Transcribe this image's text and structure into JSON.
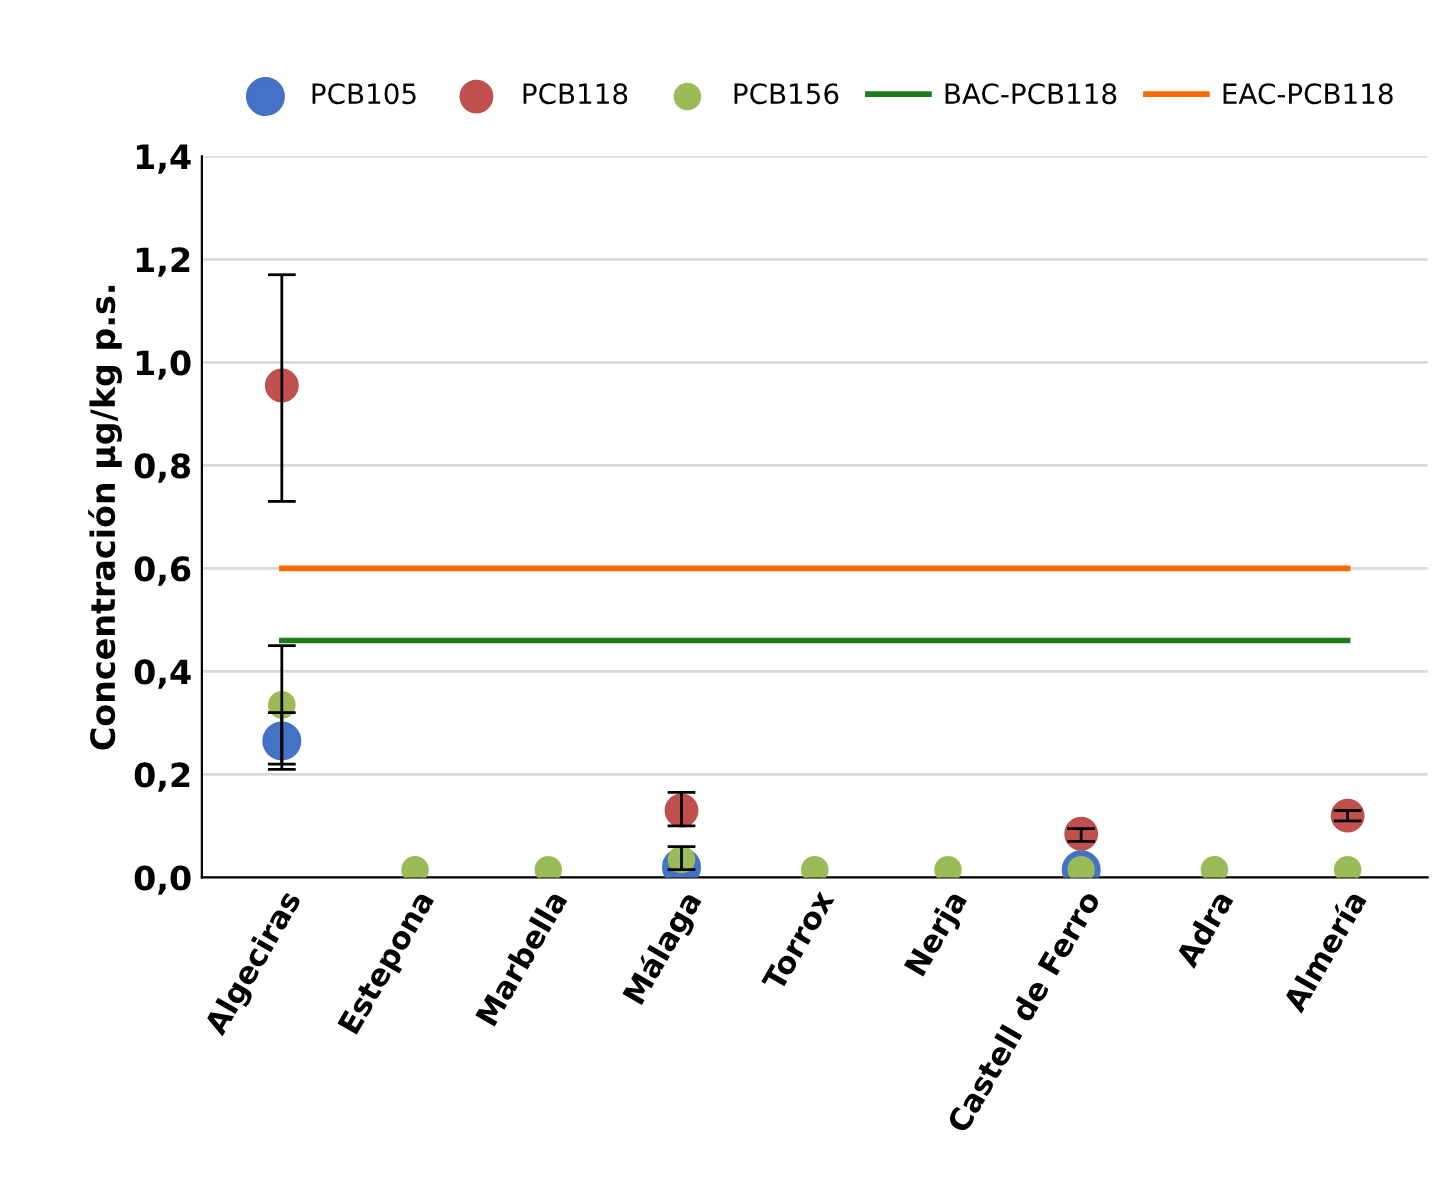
{
  "chart_data": {
    "type": "scatter",
    "ylabel": "Concentración µg/kg p.s.",
    "categories": [
      "Algeciras",
      "Estepona",
      "Marbella",
      "Málaga",
      "Torrox",
      "Nerja",
      "Castell de Ferro",
      "Adra",
      "Almería"
    ],
    "series": [
      {
        "name": "PCB105",
        "color": "#4472c4",
        "marker": "circle",
        "values": [
          0.265,
          null,
          null,
          0.02,
          null,
          null,
          0.015,
          null,
          null
        ],
        "errors": [
          [
            0.21,
            0.32
          ],
          null,
          null,
          null,
          null,
          null,
          null,
          null,
          null
        ]
      },
      {
        "name": "PCB118",
        "color": "#c0504d",
        "marker": "circle",
        "values": [
          0.955,
          null,
          null,
          0.13,
          null,
          null,
          0.085,
          null,
          0.12
        ],
        "errors": [
          [
            0.73,
            1.17
          ],
          null,
          null,
          [
            0.1,
            0.165
          ],
          null,
          null,
          [
            0.07,
            0.095
          ],
          null,
          [
            0.11,
            0.13
          ]
        ]
      },
      {
        "name": "PCB156",
        "color": "#9bbb59",
        "marker": "circle",
        "values": [
          0.335,
          0.015,
          0.015,
          0.035,
          0.015,
          0.015,
          0.015,
          0.015,
          0.015
        ],
        "errors": [
          [
            0.22,
            0.45
          ],
          null,
          null,
          [
            0.015,
            0.06
          ],
          null,
          null,
          null,
          null,
          null
        ]
      },
      {
        "name": "BAC-PCB118",
        "type": "line",
        "marker": "none",
        "color": "#1e7b1e",
        "values": [
          0.46,
          0.46,
          0.46,
          0.46,
          0.46,
          0.46,
          0.46,
          0.46,
          0.46
        ]
      },
      {
        "name": "EAC-PCB118",
        "type": "line",
        "marker": "none",
        "color": "#ff6a00",
        "values": [
          0.6,
          0.6,
          0.6,
          0.6,
          0.6,
          0.6,
          0.6,
          0.6,
          0.6
        ]
      }
    ],
    "ylim": [
      0,
      1.4
    ],
    "yticks": [
      {
        "value": 0,
        "label": "0,0"
      },
      {
        "value": 0.2,
        "label": "0,2"
      },
      {
        "value": 0.4,
        "label": "0,4"
      },
      {
        "value": 0.6,
        "label": "0,6"
      },
      {
        "value": 0.8,
        "label": "0,8"
      },
      {
        "value": 1.0,
        "label": "1,0"
      },
      {
        "value": 1.2,
        "label": "1,2"
      },
      {
        "value": 1.4,
        "label": "1,4"
      }
    ],
    "grid": "y",
    "legend": "top",
    "line_style": "solid"
  }
}
